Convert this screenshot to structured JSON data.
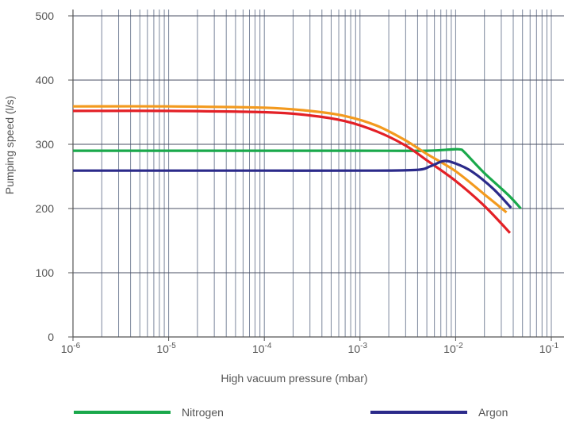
{
  "chart_data": {
    "type": "line",
    "title": "",
    "xlabel": "High vacuum pressure (mbar)",
    "ylabel": "Pumping speed (l/s)",
    "x_scale": "log",
    "xlim": [
      1e-06,
      0.1
    ],
    "ylim": [
      0,
      500
    ],
    "grid": true,
    "legend_position": "bottom",
    "x_ticks": [
      {
        "value": 1e-06,
        "base": "10",
        "exp": "-6"
      },
      {
        "value": 1e-05,
        "base": "10",
        "exp": "-5"
      },
      {
        "value": 0.0001,
        "base": "10",
        "exp": "-4"
      },
      {
        "value": 0.001,
        "base": "10",
        "exp": "-3"
      },
      {
        "value": 0.01,
        "base": "10",
        "exp": "-2"
      },
      {
        "value": 0.1,
        "base": "10",
        "exp": "-1"
      }
    ],
    "y_ticks": [
      0,
      100,
      200,
      300,
      400,
      500
    ],
    "series": [
      {
        "name": "Nitrogen",
        "color": "#1aa84b",
        "points": [
          [
            1e-06,
            290
          ],
          [
            1e-05,
            290
          ],
          [
            0.0001,
            290
          ],
          [
            0.001,
            290
          ],
          [
            0.005,
            290
          ],
          [
            0.009,
            292
          ],
          [
            0.0112,
            292
          ],
          [
            0.0125,
            287
          ],
          [
            0.02,
            255
          ],
          [
            0.035,
            222
          ],
          [
            0.048,
            200
          ]
        ]
      },
      {
        "series_name_printed": false,
        "color": "#f39a1e",
        "points": [
          [
            1e-06,
            359
          ],
          [
            1e-05,
            359
          ],
          [
            0.0001,
            357
          ],
          [
            0.0003,
            352
          ],
          [
            0.0007,
            344
          ],
          [
            0.0015,
            329
          ],
          [
            0.003,
            306
          ],
          [
            0.005,
            285
          ],
          [
            0.01,
            258
          ],
          [
            0.02,
            222
          ],
          [
            0.034,
            194
          ]
        ]
      },
      {
        "series_name_printed": false,
        "color": "#e32026",
        "points": [
          [
            1e-06,
            352
          ],
          [
            1e-05,
            352
          ],
          [
            0.0001,
            350
          ],
          [
            0.0003,
            345
          ],
          [
            0.0007,
            336
          ],
          [
            0.0015,
            320
          ],
          [
            0.003,
            298
          ],
          [
            0.005,
            275
          ],
          [
            0.01,
            243
          ],
          [
            0.02,
            204
          ],
          [
            0.037,
            162
          ]
        ]
      },
      {
        "name": "Argon",
        "color": "#2b2a8a",
        "points": [
          [
            1e-06,
            259
          ],
          [
            1e-05,
            259
          ],
          [
            0.0001,
            259
          ],
          [
            0.001,
            259
          ],
          [
            0.0038,
            260
          ],
          [
            0.0055,
            266
          ],
          [
            0.0075,
            274
          ],
          [
            0.01,
            270
          ],
          [
            0.015,
            257
          ],
          [
            0.025,
            230
          ],
          [
            0.038,
            201
          ]
        ]
      }
    ]
  },
  "legend": {
    "items": [
      {
        "label": "Nitrogen",
        "color": "#1aa84b"
      },
      {
        "label": "Argon",
        "color": "#2b2a8a"
      }
    ]
  }
}
